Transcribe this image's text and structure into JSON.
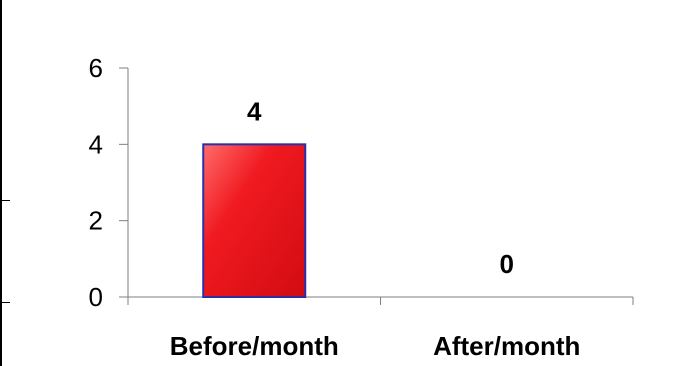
{
  "chart_data": {
    "type": "bar",
    "categories": [
      "Before/month",
      "After/month"
    ],
    "values": [
      4,
      0
    ],
    "data_labels": [
      "4",
      "0"
    ],
    "title": "",
    "xlabel": "",
    "ylabel": "",
    "ylim": [
      0,
      6
    ],
    "yticks": [
      0,
      2,
      4,
      6
    ],
    "ytick_labels": [
      "0",
      "2",
      "4",
      "6"
    ],
    "grid": false,
    "legend": "none",
    "colors": {
      "bar_fill": "#e8141b",
      "bar_highlight": "#ff5a5a",
      "bar_border": "#2a2fa8",
      "axis": "#7f7f7f"
    }
  }
}
